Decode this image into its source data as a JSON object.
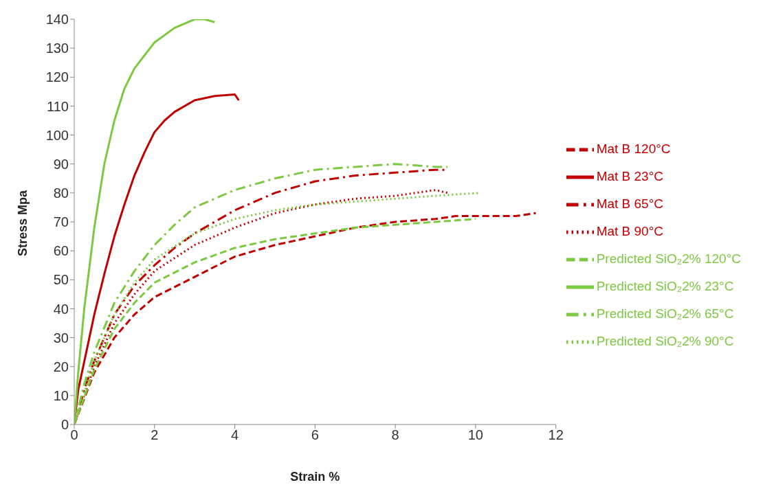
{
  "chart_data": {
    "type": "line",
    "xlabel": "Strain %",
    "ylabel": "Stress Mpa",
    "xlim": [
      0,
      12
    ],
    "xticks": [
      0,
      2,
      4,
      6,
      8,
      10,
      12
    ],
    "ylim": [
      0,
      140
    ],
    "yticks": [
      0,
      10,
      20,
      30,
      40,
      50,
      60,
      70,
      80,
      90,
      100,
      110,
      120,
      130,
      140
    ],
    "grid": false,
    "legend": "right",
    "marker": "none",
    "series": [
      {
        "name": "Mat B 23°C",
        "color": "#c00000",
        "line_style": "solid",
        "x": [
          0,
          0.1,
          0.3,
          0.5,
          0.75,
          1,
          1.25,
          1.5,
          1.75,
          2,
          2.25,
          2.5,
          3,
          3.5,
          4,
          4.1
        ],
        "values": [
          0,
          12,
          25,
          38,
          52,
          65,
          76,
          86,
          94,
          101,
          105,
          108,
          112,
          113.5,
          114,
          112
        ]
      },
      {
        "name": "Mat B 65°C",
        "color": "#c00000",
        "line_style": "dashdot",
        "x": [
          0,
          0.25,
          0.5,
          1,
          1.5,
          2,
          2.5,
          3,
          3.5,
          4,
          5,
          6,
          7,
          8,
          9,
          9.3
        ],
        "values": [
          0,
          12,
          22,
          38,
          48,
          55,
          61,
          66,
          70,
          74,
          80,
          84,
          86,
          87,
          88,
          88
        ]
      },
      {
        "name": "Mat B 90°C",
        "color": "#c00000",
        "line_style": "dotted",
        "x": [
          0,
          0.5,
          1,
          1.5,
          2,
          3,
          4,
          5,
          6,
          7,
          8,
          9,
          9.3
        ],
        "values": [
          0,
          20,
          35,
          45,
          53,
          62,
          68,
          73,
          76,
          78,
          79,
          81,
          80
        ]
      },
      {
        "name": "Mat B 120°C",
        "color": "#c00000",
        "line_style": "dashed",
        "x": [
          0,
          0.5,
          1,
          1.5,
          2,
          3,
          4,
          5,
          6,
          7,
          8,
          9,
          9.5,
          10,
          11,
          11.5
        ],
        "values": [
          0,
          18,
          30,
          38,
          44,
          51,
          58,
          62,
          65,
          68,
          70,
          71,
          72,
          72,
          72,
          73
        ]
      },
      {
        "name": "Predicted SiO₂2% 23°C",
        "color": "#7cc940",
        "line_style": "solid",
        "x": [
          0,
          0.1,
          0.25,
          0.5,
          0.75,
          1,
          1.25,
          1.5,
          2,
          2.5,
          3,
          3.25,
          3.5
        ],
        "values": [
          0,
          18,
          40,
          68,
          90,
          105,
          116,
          123,
          132,
          137,
          140,
          140,
          139
        ]
      },
      {
        "name": "Predicted SiO₂2% 65°C",
        "color": "#7cc940",
        "line_style": "dashdot",
        "x": [
          0,
          0.25,
          0.5,
          1,
          1.5,
          2,
          2.5,
          3,
          3.5,
          4,
          5,
          6,
          7,
          8,
          9,
          9.3
        ],
        "values": [
          0,
          14,
          25,
          42,
          53,
          62,
          69,
          75,
          78,
          81,
          85,
          88,
          89,
          90,
          89,
          89
        ]
      },
      {
        "name": "Predicted SiO₂2% 90°C",
        "color": "#7cc940",
        "line_style": "dotted",
        "x": [
          0,
          0.5,
          1,
          1.5,
          2,
          3,
          4,
          5,
          6,
          7,
          8,
          9,
          10.1
        ],
        "values": [
          0,
          22,
          38,
          49,
          57,
          66,
          71,
          74,
          76,
          77,
          78,
          79,
          80
        ]
      },
      {
        "name": "Predicted SiO₂2% 120°C",
        "color": "#7cc940",
        "line_style": "dashed",
        "x": [
          0,
          0.5,
          1,
          1.5,
          2,
          3,
          4,
          5,
          6,
          7,
          8,
          9,
          10
        ],
        "values": [
          0,
          19,
          33,
          42,
          49,
          56,
          61,
          64,
          66,
          68,
          69,
          70,
          71
        ]
      }
    ]
  }
}
